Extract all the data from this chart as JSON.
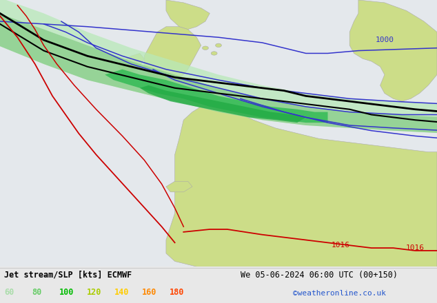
{
  "title_left": "Jet stream/SLP [kts] ECMWF",
  "title_right": "We 05-06-2024 06:00 UTC (00+150)",
  "credit": "©weatheronline.co.uk",
  "legend_values": [
    "60",
    "80",
    "100",
    "120",
    "140",
    "160",
    "180"
  ],
  "legend_colors": [
    "#aaddaa",
    "#66cc66",
    "#00bb00",
    "#aacc00",
    "#ffcc00",
    "#ff8800",
    "#ff4400"
  ],
  "bg_color": "#e8e8e8",
  "land_color_yellow": "#ccdd88",
  "land_color_light": "#d4e8a0",
  "sea_color": "#e0e8f0",
  "slp_color": "#3333cc",
  "jet_black": "#000000",
  "jet_red": "#cc0000",
  "green_light": "#aaddaa",
  "green_mid": "#66cc88",
  "green_dark": "#22aa44",
  "label_1000_color": "#3333cc",
  "label_1016_color": "#cc0000"
}
